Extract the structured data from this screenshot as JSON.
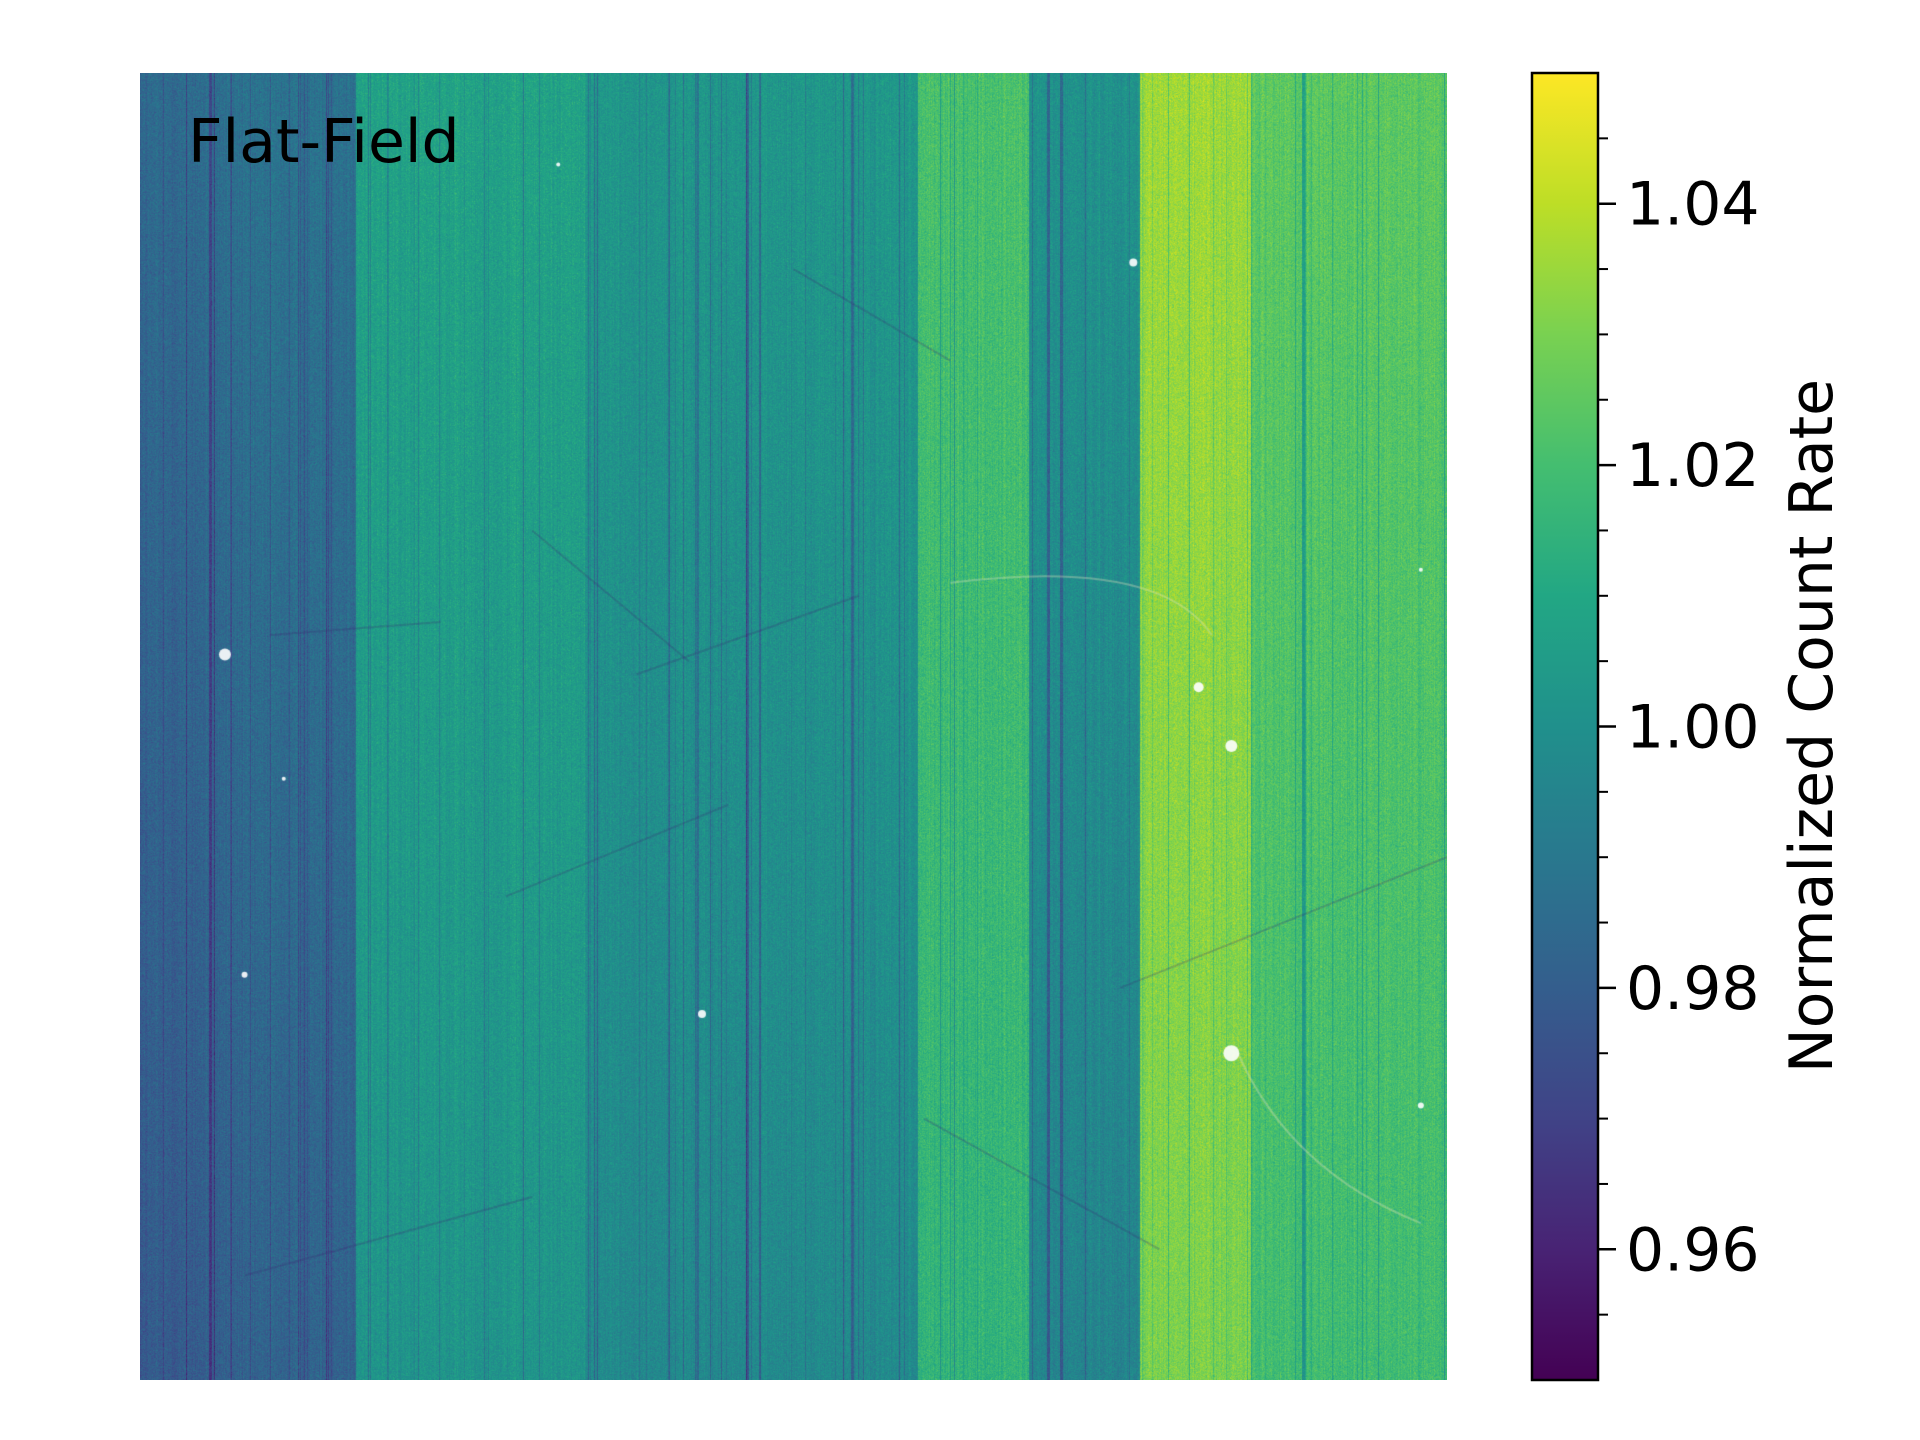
{
  "chart_data": {
    "type": "heatmap",
    "title": "",
    "panel_label": "Flat-Field",
    "colormap": "viridis",
    "colorbar": {
      "label": "Normalized Count Rate",
      "vmin": 0.95,
      "vmax": 1.05,
      "major_ticks": [
        0.96,
        0.98,
        1.0,
        1.02,
        1.04
      ],
      "tick_labels": [
        "0.96",
        "0.98",
        "1.00",
        "1.02",
        "1.04"
      ],
      "minor_tick_step": 0.005,
      "position": "right"
    },
    "column_bands": [
      {
        "x_range": [
          0.0,
          0.165
        ],
        "value": 0.985
      },
      {
        "x_range": [
          0.165,
          0.34
        ],
        "value": 1.005
      },
      {
        "x_range": [
          0.34,
          0.595
        ],
        "value": 1.0
      },
      {
        "x_range": [
          0.595,
          0.68
        ],
        "value": 1.018
      },
      {
        "x_range": [
          0.68,
          0.765
        ],
        "value": 0.998
      },
      {
        "x_range": [
          0.765,
          0.85
        ],
        "value": 1.033
      },
      {
        "x_range": [
          0.85,
          1.0
        ],
        "value": 1.022
      }
    ],
    "vertical_gradient": "slightly brighter toward top",
    "artifacts": [
      "dark vertical streaks",
      "faint diagonal scratches",
      "bright point defects"
    ],
    "xticks": "none",
    "yticks": "none"
  },
  "colors": {
    "background": "#ffffff",
    "text": "#000000"
  }
}
